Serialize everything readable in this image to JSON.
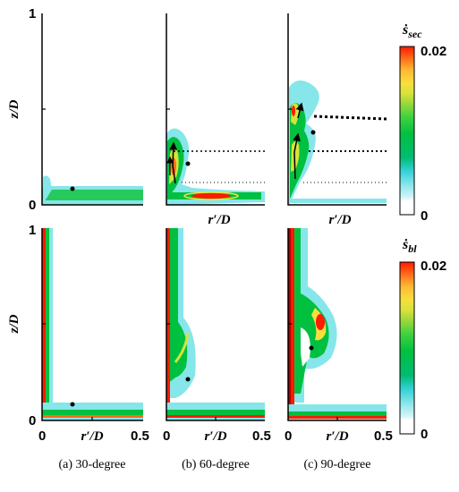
{
  "figure": {
    "panels_top_label": "ṡ",
    "top_colorbar": {
      "symbol": "ṡ",
      "subscript": "sec",
      "max_label": "0.02",
      "min_label": "0"
    },
    "bottom_colorbar": {
      "symbol": "ṡ",
      "subscript": "bl",
      "max_label": "0.02",
      "min_label": "0"
    },
    "ylabel": "z/D",
    "xlabel": "r′/D",
    "x_ticks": [
      "0",
      "0.5"
    ],
    "y_ticks": [
      "0",
      "1"
    ],
    "captions": [
      "(a) 30-degree",
      "(b) 60-degree",
      "(c) 90-degree"
    ]
  },
  "chart_data": {
    "type": "heatmap",
    "layout": "2 rows x 3 columns of contour panels",
    "xlabel": "r′/D",
    "ylabel": "z/D",
    "xlim": [
      0,
      0.5
    ],
    "ylim": [
      0,
      1
    ],
    "rows": [
      {
        "quantity": "ṡsec",
        "colorbar_range": [
          0,
          0.02
        ]
      },
      {
        "quantity": "ṡbl",
        "colorbar_range": [
          0,
          0.02
        ]
      }
    ],
    "columns": [
      "(a) 30-degree",
      "(b) 60-degree",
      "(c) 90-degree"
    ],
    "markers": [
      {
        "panel": "(a) 30-degree",
        "r": 0.14,
        "z": 0.08
      },
      {
        "panel": "(b) 60-degree",
        "r": 0.11,
        "z": 0.21
      },
      {
        "panel": "(c) 90-degree",
        "r": 0.12,
        "z": 0.38
      }
    ],
    "colormap": [
      "#ffffff",
      "#d9f4f8",
      "#86e6ea",
      "#33d1d6",
      "#00bc72",
      "#00c040",
      "#3fd23f",
      "#9ad83a",
      "#d6e33a",
      "#f6e03c",
      "#ffb833",
      "#ff6b1a",
      "#ff1a00"
    ]
  }
}
